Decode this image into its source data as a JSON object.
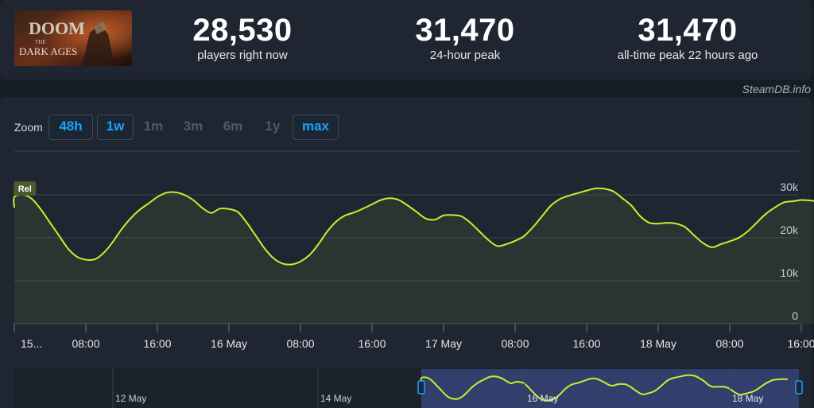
{
  "game": {
    "logo_top": "DOOM",
    "logo_mid": "THE",
    "logo_bottom": "DARK AGES"
  },
  "stats": [
    {
      "value": "28,530",
      "label": "players right now"
    },
    {
      "value": "31,470",
      "label": "24-hour peak"
    },
    {
      "value": "31,470",
      "label": "all-time peak 22 hours ago"
    }
  ],
  "credit": "SteamDB.info",
  "zoom": {
    "label": "Zoom",
    "options": [
      {
        "label": "48h",
        "active": true
      },
      {
        "label": "1w",
        "active": true
      },
      {
        "label": "1m",
        "active": false
      },
      {
        "label": "3m",
        "active": false
      },
      {
        "label": "6m",
        "active": false
      },
      {
        "label": "1y",
        "active": false
      },
      {
        "label": "max",
        "active": true
      }
    ]
  },
  "colors": {
    "line": "#c5f12e",
    "accent": "#1aa3ff",
    "grid": "#3a4453"
  },
  "chart_data": {
    "type": "line",
    "x_unit": "hours since first x tick label (15 May 00:00)",
    "y_ticks": [
      0,
      10000,
      20000,
      30000
    ],
    "y_tick_labels": [
      "0",
      "10k",
      "20k",
      "30k"
    ],
    "ylim": [
      0,
      34000
    ],
    "x_tick_labels": [
      {
        "h": 0,
        "label": "15..."
      },
      {
        "h": 8,
        "label": "08:00"
      },
      {
        "h": 16,
        "label": "16:00"
      },
      {
        "h": 24,
        "label": "16 May"
      },
      {
        "h": 32,
        "label": "08:00"
      },
      {
        "h": 40,
        "label": "16:00"
      },
      {
        "h": 48,
        "label": "17 May"
      },
      {
        "h": 56,
        "label": "08:00"
      },
      {
        "h": 64,
        "label": "16:00"
      },
      {
        "h": 72,
        "label": "18 May"
      },
      {
        "h": 80,
        "label": "08:00"
      },
      {
        "h": 88,
        "label": "16:00"
      }
    ],
    "flag": {
      "label": "Rel",
      "h": 1
    },
    "series": [
      {
        "x": [
          -1,
          0,
          1,
          2,
          3,
          4,
          5,
          6,
          7,
          8,
          9,
          10,
          11,
          12,
          13,
          14,
          15,
          16,
          17,
          18,
          19,
          20,
          21,
          22,
          23,
          24,
          25,
          26,
          27,
          28,
          29,
          30,
          31,
          32,
          33,
          34,
          35,
          36,
          37,
          38,
          39,
          40,
          41,
          42,
          43,
          44,
          45,
          46,
          47,
          48,
          49,
          50,
          51,
          52,
          53,
          54,
          55,
          56,
          57,
          58,
          59,
          60,
          61,
          62,
          63,
          64,
          65,
          66,
          67,
          68,
          69,
          70,
          71,
          72,
          73,
          74,
          75,
          76,
          77,
          78,
          79,
          80,
          81,
          82,
          83,
          84,
          85,
          86,
          87,
          88,
          89,
          89.5
        ],
        "y": [
          27000,
          29500,
          30000,
          29000,
          26500,
          23500,
          20500,
          17500,
          15600,
          14900,
          15000,
          16500,
          19000,
          22000,
          24500,
          26500,
          28000,
          29500,
          30500,
          30600,
          30000,
          28800,
          27000,
          25800,
          26800,
          26700,
          26000,
          23500,
          20500,
          17500,
          15200,
          14000,
          13800,
          14500,
          16000,
          18500,
          21500,
          23800,
          25200,
          25900,
          26800,
          27800,
          28800,
          29200,
          28800,
          27500,
          26000,
          24500,
          24200,
          25200,
          25300,
          25000,
          23500,
          21500,
          19500,
          18100,
          18500,
          19300,
          20400,
          22500,
          25000,
          27500,
          29000,
          29800,
          30400,
          31000,
          31500,
          31400,
          30800,
          29200,
          27500,
          25000,
          23500,
          23300,
          23500,
          23300,
          22500,
          20600,
          18800,
          17800,
          18500,
          19200,
          20000,
          21500,
          23500,
          25500,
          27000,
          28200,
          28500,
          28800,
          28700,
          28530
        ]
      }
    ],
    "navigator": {
      "labels": [
        "12 May",
        "14 May",
        "16 May",
        "18 May"
      ]
    }
  }
}
